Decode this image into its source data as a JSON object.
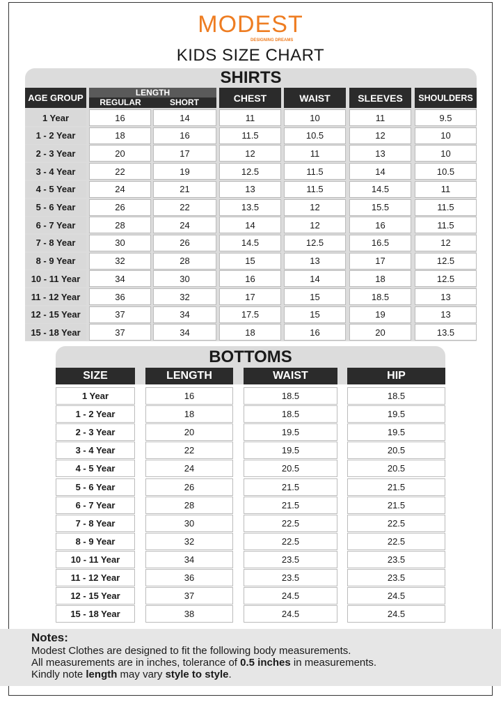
{
  "brand": {
    "name": "MODEST",
    "tagline": "DESIGNING DREAMS",
    "color": "#ee7d22"
  },
  "title": "KIDS SIZE CHART",
  "shirts": {
    "title": "SHIRTS",
    "headers": {
      "age_group": "AGE GROUP",
      "length": "LENGTH",
      "regular": "REGULAR",
      "short": "SHORT",
      "chest": "CHEST",
      "waist": "WAIST",
      "sleeves": "SLEEVES",
      "shoulders": "SHOULDERS"
    },
    "rows": [
      [
        "1 Year",
        "16",
        "14",
        "11",
        "10",
        "11",
        "9.5"
      ],
      [
        "1 - 2 Year",
        "18",
        "16",
        "11.5",
        "10.5",
        "12",
        "10"
      ],
      [
        "2 - 3 Year",
        "20",
        "17",
        "12",
        "11",
        "13",
        "10"
      ],
      [
        "3 - 4 Year",
        "22",
        "19",
        "12.5",
        "11.5",
        "14",
        "10.5"
      ],
      [
        "4 - 5 Year",
        "24",
        "21",
        "13",
        "11.5",
        "14.5",
        "11"
      ],
      [
        "5 - 6 Year",
        "26",
        "22",
        "13.5",
        "12",
        "15.5",
        "11.5"
      ],
      [
        "6 - 7 Year",
        "28",
        "24",
        "14",
        "12",
        "16",
        "11.5"
      ],
      [
        "7 - 8 Year",
        "30",
        "26",
        "14.5",
        "12.5",
        "16.5",
        "12"
      ],
      [
        "8 - 9 Year",
        "32",
        "28",
        "15",
        "13",
        "17",
        "12.5"
      ],
      [
        "10 - 11 Year",
        "34",
        "30",
        "16",
        "14",
        "18",
        "12.5"
      ],
      [
        "11 - 12 Year",
        "36",
        "32",
        "17",
        "15",
        "18.5",
        "13"
      ],
      [
        "12 - 15 Year",
        "37",
        "34",
        "17.5",
        "15",
        "19",
        "13"
      ],
      [
        "15 - 18 Year",
        "37",
        "34",
        "18",
        "16",
        "20",
        "13.5"
      ]
    ]
  },
  "bottoms": {
    "title": "BOTTOMS",
    "headers": [
      "SIZE",
      "LENGTH",
      "WAIST",
      "HIP"
    ],
    "rows": [
      [
        "1 Year",
        "16",
        "18.5",
        "18.5"
      ],
      [
        "1 - 2 Year",
        "18",
        "18.5",
        "19.5"
      ],
      [
        "2 - 3 Year",
        "20",
        "19.5",
        "19.5"
      ],
      [
        "3 - 4 Year",
        "22",
        "19.5",
        "20.5"
      ],
      [
        "4 - 5 Year",
        "24",
        "20.5",
        "20.5"
      ],
      [
        "5 - 6 Year",
        "26",
        "21.5",
        "21.5"
      ],
      [
        "6 - 7 Year",
        "28",
        "21.5",
        "21.5"
      ],
      [
        "7 - 8 Year",
        "30",
        "22.5",
        "22.5"
      ],
      [
        "8 - 9 Year",
        "32",
        "22.5",
        "22.5"
      ],
      [
        "10 - 11 Year",
        "34",
        "23.5",
        "23.5"
      ],
      [
        "11 - 12 Year",
        "36",
        "23.5",
        "23.5"
      ],
      [
        "12 - 15 Year",
        "37",
        "24.5",
        "24.5"
      ],
      [
        "15 - 18 Year",
        "38",
        "24.5",
        "24.5"
      ]
    ]
  },
  "notes": {
    "heading": "Notes:",
    "line1": "Modest Clothes are designed to fit the following body measurements.",
    "line2_a": "All measurements are in inches, tolerance of ",
    "line2_b": "0.5 inches",
    "line2_c": " in measurements.",
    "line3_a": "Kindly note ",
    "line3_b": "length",
    "line3_c": " may vary ",
    "line3_d": "style to style",
    "line3_e": "."
  }
}
